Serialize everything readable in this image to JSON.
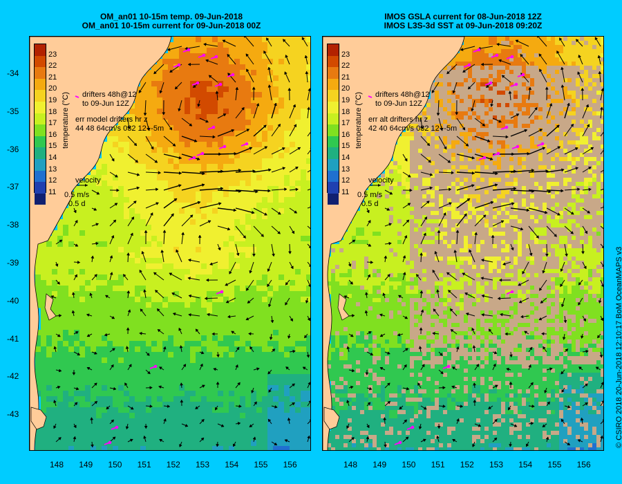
{
  "left_panel": {
    "title_line1": "OM_an01 10-15m temp. 09-Jun-2018",
    "title_line2": "OM_an01 10-15m current for 09-Jun-2018 00Z",
    "drifters_line1": "drifters 48h@12",
    "drifters_line2": "to 09-Jun 12Z",
    "err_line1": "err model drifters hr z",
    "err_line2": "44 48 64cm/s 032 12+-5m"
  },
  "right_panel": {
    "title_line1": "IMOS GSLA current for 08-Jun-2018 12Z",
    "title_line2": "IMOS L3S-3d SST at 09-Jun-2018 09:20Z",
    "drifters_line1": "drifters 48h@12",
    "drifters_line2": "to 09-Jun 12Z",
    "err_line1": "err alt drifters hr z",
    "err_line2": "42 40 64cm/s 032 12+-5m"
  },
  "legend": {
    "title": "temperature (°C)",
    "ticks": [
      "23",
      "22",
      "21",
      "20",
      "19",
      "18",
      "17",
      "16",
      "15",
      "14",
      "13",
      "12",
      "11"
    ],
    "colors": [
      "#b22200",
      "#d24a00",
      "#e87a10",
      "#f5aa10",
      "#f5d320",
      "#f0f030",
      "#c8f020",
      "#80e020",
      "#30c850",
      "#20b080",
      "#20a0c0",
      "#2070d0",
      "#2040b0",
      "#102070"
    ]
  },
  "velocity_key": {
    "label": "velocity",
    "speed": "0.5 m/s",
    "duration": "0.5 d"
  },
  "axes": {
    "lat_labels": [
      "-34",
      "-35",
      "-36",
      "-37",
      "-38",
      "-39",
      "-40",
      "-41",
      "-42",
      "-43"
    ],
    "lon_labels": [
      "148",
      "149",
      "150",
      "151",
      "152",
      "153",
      "154",
      "155",
      "156"
    ]
  },
  "credit": "© CSIRO 2018    20-Jun-2018 12:10:17 BoM OceanMAPS v3",
  "colors": {
    "background": "#00ccff",
    "land": "#ffcc99",
    "missing_data": "#c8a888",
    "drifter": "#ff00ff"
  }
}
